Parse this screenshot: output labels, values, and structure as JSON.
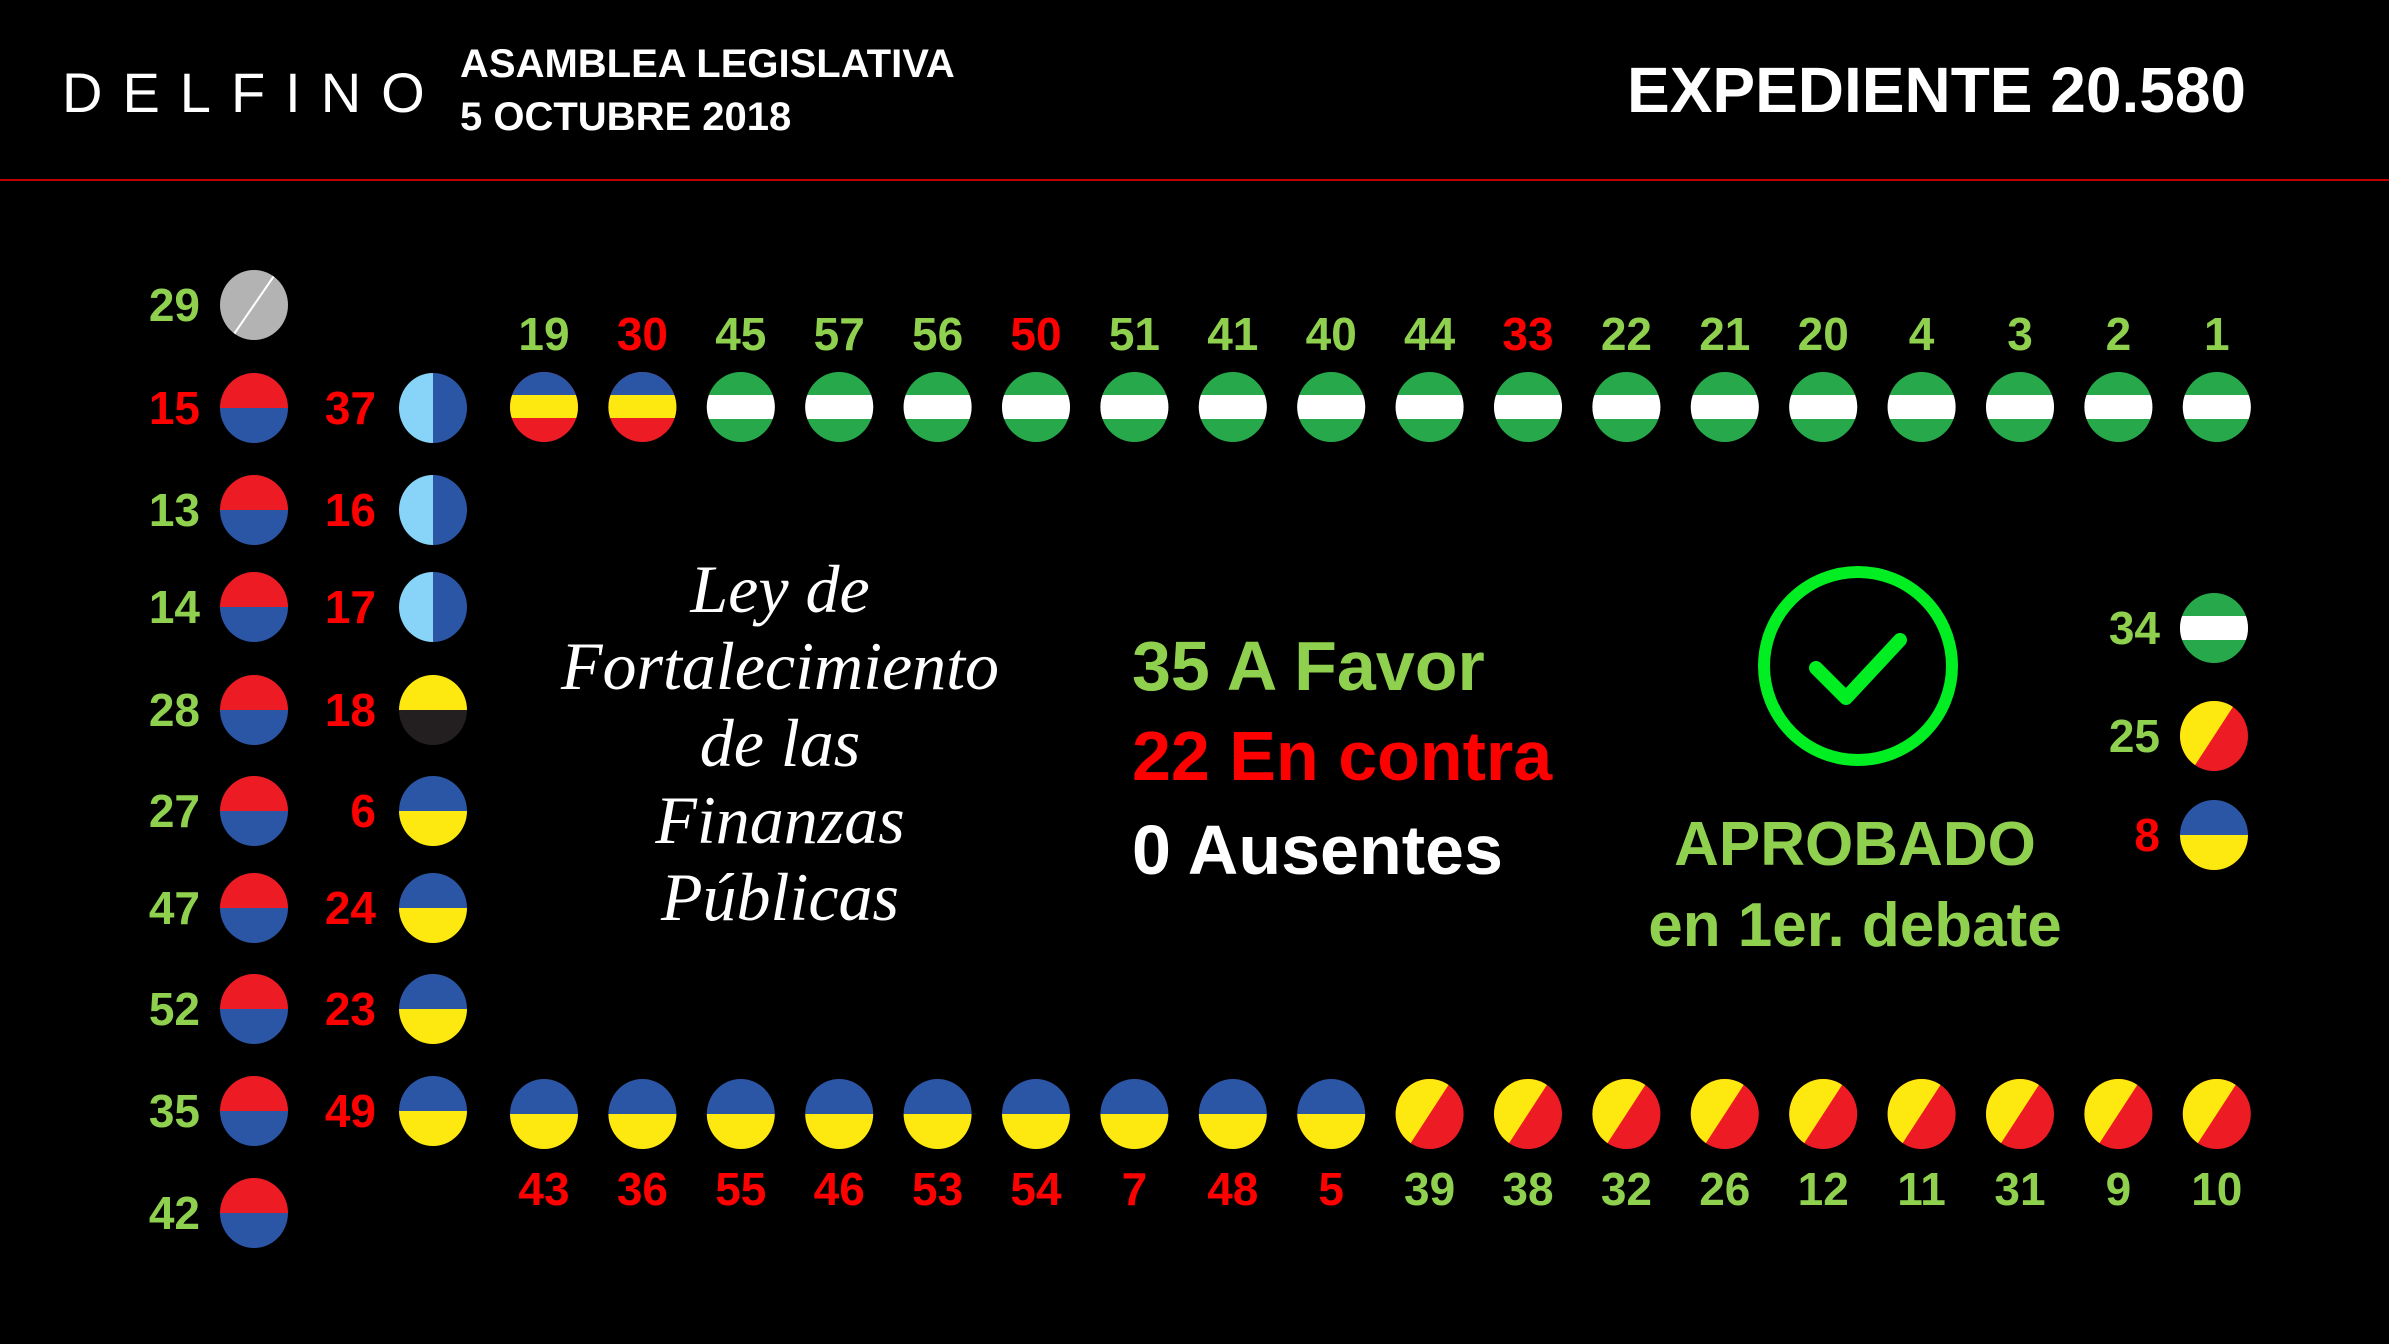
{
  "header": {
    "logo": "DELFINO",
    "assembly": "ASAMBLEA LEGISLATIVA",
    "date": "5 OCTUBRE 2018",
    "expediente": "EXPEDIENTE 20.580"
  },
  "bill_title": [
    "Ley de",
    "Fortalecimiento",
    "de las",
    "Finanzas",
    "Públicas"
  ],
  "tally": {
    "favor": "35 A Favor",
    "contra": "22 En contra",
    "ausentes": "0 Ausentes"
  },
  "result": {
    "line1": "APROBADO",
    "line2": "en 1er. debate",
    "icon": "check-circle-icon"
  },
  "colors": {
    "favor": "#8fd14f",
    "contra": "#ff0000",
    "divider": "#c00000",
    "check": "#00ee22",
    "party_red": "#ed1c24",
    "party_blue": "#2b55a5",
    "party_yellow": "#fde910",
    "party_green": "#27a84a",
    "party_lightblue": "#87d4f8",
    "party_gray": "#b3b3b3",
    "party_black": "#231f20"
  },
  "seats": {
    "top_row": [
      {
        "n": "19",
        "vote": "favor",
        "flag": "tricolor"
      },
      {
        "n": "30",
        "vote": "contra",
        "flag": "tricolor"
      },
      {
        "n": "45",
        "vote": "favor",
        "flag": "green-white"
      },
      {
        "n": "57",
        "vote": "favor",
        "flag": "green-white"
      },
      {
        "n": "56",
        "vote": "favor",
        "flag": "green-white"
      },
      {
        "n": "50",
        "vote": "contra",
        "flag": "green-white"
      },
      {
        "n": "51",
        "vote": "favor",
        "flag": "green-white"
      },
      {
        "n": "41",
        "vote": "favor",
        "flag": "green-white"
      },
      {
        "n": "40",
        "vote": "favor",
        "flag": "green-white"
      },
      {
        "n": "44",
        "vote": "favor",
        "flag": "green-white"
      },
      {
        "n": "33",
        "vote": "contra",
        "flag": "green-white"
      },
      {
        "n": "22",
        "vote": "favor",
        "flag": "green-white"
      },
      {
        "n": "21",
        "vote": "favor",
        "flag": "green-white"
      },
      {
        "n": "20",
        "vote": "favor",
        "flag": "green-white"
      },
      {
        "n": "4",
        "vote": "favor",
        "flag": "green-white"
      },
      {
        "n": "3",
        "vote": "favor",
        "flag": "green-white"
      },
      {
        "n": "2",
        "vote": "favor",
        "flag": "green-white"
      },
      {
        "n": "1",
        "vote": "favor",
        "flag": "green-white"
      }
    ],
    "bottom_row": [
      {
        "n": "43",
        "vote": "contra",
        "flag": "blue-yellow"
      },
      {
        "n": "36",
        "vote": "contra",
        "flag": "blue-yellow"
      },
      {
        "n": "55",
        "vote": "contra",
        "flag": "blue-yellow"
      },
      {
        "n": "46",
        "vote": "contra",
        "flag": "blue-yellow"
      },
      {
        "n": "53",
        "vote": "contra",
        "flag": "blue-yellow"
      },
      {
        "n": "54",
        "vote": "contra",
        "flag": "blue-yellow"
      },
      {
        "n": "7",
        "vote": "contra",
        "flag": "blue-yellow"
      },
      {
        "n": "48",
        "vote": "contra",
        "flag": "blue-yellow"
      },
      {
        "n": "5",
        "vote": "contra",
        "flag": "blue-yellow"
      },
      {
        "n": "39",
        "vote": "favor",
        "flag": "yellow-red"
      },
      {
        "n": "38",
        "vote": "favor",
        "flag": "yellow-red"
      },
      {
        "n": "32",
        "vote": "favor",
        "flag": "yellow-red"
      },
      {
        "n": "26",
        "vote": "favor",
        "flag": "yellow-red"
      },
      {
        "n": "12",
        "vote": "favor",
        "flag": "yellow-red"
      },
      {
        "n": "11",
        "vote": "favor",
        "flag": "yellow-red"
      },
      {
        "n": "31",
        "vote": "favor",
        "flag": "yellow-red"
      },
      {
        "n": "9",
        "vote": "favor",
        "flag": "yellow-red"
      },
      {
        "n": "10",
        "vote": "favor",
        "flag": "yellow-red"
      }
    ],
    "left_col1": [
      {
        "n": "29",
        "vote": "favor",
        "flag": "gray"
      },
      {
        "n": "15",
        "vote": "contra",
        "flag": "red-blue"
      },
      {
        "n": "13",
        "vote": "favor",
        "flag": "red-blue"
      },
      {
        "n": "14",
        "vote": "favor",
        "flag": "red-blue"
      },
      {
        "n": "28",
        "vote": "favor",
        "flag": "red-blue"
      },
      {
        "n": "27",
        "vote": "favor",
        "flag": "red-blue"
      },
      {
        "n": "47",
        "vote": "favor",
        "flag": "red-blue"
      },
      {
        "n": "52",
        "vote": "favor",
        "flag": "red-blue"
      },
      {
        "n": "35",
        "vote": "favor",
        "flag": "red-blue"
      },
      {
        "n": "42",
        "vote": "favor",
        "flag": "red-blue"
      }
    ],
    "left_col2": [
      {
        "n": "37",
        "vote": "contra",
        "flag": "lightblue-blue"
      },
      {
        "n": "16",
        "vote": "contra",
        "flag": "lightblue-blue"
      },
      {
        "n": "17",
        "vote": "contra",
        "flag": "lightblue-blue"
      },
      {
        "n": "18",
        "vote": "contra",
        "flag": "yellow-black"
      },
      {
        "n": "6",
        "vote": "contra",
        "flag": "blue-yellow"
      },
      {
        "n": "24",
        "vote": "contra",
        "flag": "blue-yellow"
      },
      {
        "n": "23",
        "vote": "contra",
        "flag": "blue-yellow"
      },
      {
        "n": "49",
        "vote": "contra",
        "flag": "blue-yellow"
      }
    ],
    "right_col": [
      {
        "n": "34",
        "vote": "favor",
        "flag": "green-white"
      },
      {
        "n": "25",
        "vote": "favor",
        "flag": "yellow-red"
      },
      {
        "n": "8",
        "vote": "contra",
        "flag": "blue-yellow"
      }
    ]
  }
}
